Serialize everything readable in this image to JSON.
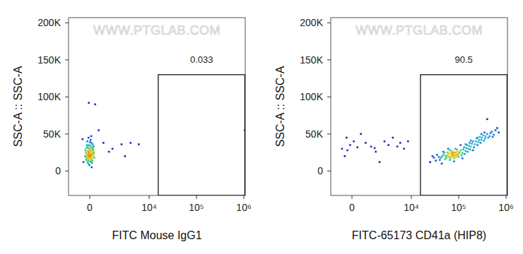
{
  "chart_data": [
    {
      "type": "scatter",
      "x_label": "FITC Mouse IgG1",
      "y_label": "SSC-A :: SSC-A",
      "watermark": "WWW.PTGLAB.COM",
      "log": "x",
      "xlim": [
        -1370,
        1070000
      ],
      "ylim": [
        -33000,
        207000
      ],
      "xticks": [
        0,
        {
          "value": 10000,
          "label": "10⁴"
        },
        {
          "value": 100000,
          "label": "10⁵"
        },
        {
          "value": 1000000,
          "label": "10⁶"
        }
      ],
      "yticks": [
        0,
        {
          "value": 50000,
          "label": "50K"
        },
        {
          "value": 100000,
          "label": "100K"
        },
        {
          "value": 150000,
          "label": "150K"
        },
        {
          "value": 200000,
          "label": "200K"
        }
      ],
      "gate": {
        "x": [
          15600,
          1050000
        ],
        "y": [
          -33000,
          130000
        ],
        "percent": 0.033
      },
      "x": [
        -120,
        40,
        100,
        -60,
        150,
        -200,
        10,
        70,
        -90,
        200,
        -30,
        120,
        -160,
        60,
        0,
        -250,
        180,
        -80,
        90,
        -40,
        30,
        -110,
        140,
        -180,
        50,
        -20,
        110,
        -140,
        220,
        -70,
        20,
        -100,
        160,
        80,
        -50,
        0,
        -220,
        130,
        -10,
        250,
        -130,
        60,
        -90,
        170,
        -30,
        100,
        -170,
        40,
        -60,
        190,
        -240,
        70,
        -120,
        10,
        150,
        -80,
        30,
        -150,
        90,
        -20,
        120,
        -200,
        50,
        -40,
        210,
        -110,
        0,
        80,
        -70,
        140,
        800,
        1500,
        2500,
        4000,
        6000,
        3000,
        1200,
        500,
        300,
        -50,
        -400,
        -350,
        1050000
      ],
      "y": [
        22000,
        18000,
        25000,
        30000,
        20000,
        15000,
        27000,
        12000,
        19000,
        23000,
        35000,
        32000,
        26000,
        21000,
        16000,
        20000,
        28000,
        10000,
        38000,
        24000,
        29000,
        33000,
        14000,
        31000,
        42000,
        8000,
        17000,
        21000,
        25000,
        45000,
        13000,
        27000,
        36000,
        23000,
        19000,
        31000,
        24000,
        11000,
        22000,
        18000,
        40000,
        26000,
        14000,
        30000,
        20000,
        5000,
        17000,
        34000,
        25000,
        21000,
        28000,
        19000,
        12000,
        39000,
        26000,
        22000,
        17000,
        35000,
        29000,
        26000,
        23000,
        19000,
        15000,
        28000,
        33000,
        23000,
        20000,
        47000,
        16000,
        20000,
        38000,
        30000,
        36000,
        38000,
        36000,
        20000,
        26000,
        55000,
        90000,
        92000,
        43000,
        12000,
        55000
      ]
    },
    {
      "type": "scatter",
      "x_label": "FITC-65173 CD41a (HIP8)",
      "y_label": "SSC-A :: SSC-A",
      "watermark": "WWW.PTGLAB.COM",
      "log": "x",
      "xlim": [
        -1370,
        1070000
      ],
      "ylim": [
        -33000,
        207000
      ],
      "xticks": [
        0,
        {
          "value": 10000,
          "label": "10⁴"
        },
        {
          "value": 100000,
          "label": "10⁵"
        },
        {
          "value": 1000000,
          "label": "10⁶"
        }
      ],
      "yticks": [
        0,
        {
          "value": 50000,
          "label": "50K"
        },
        {
          "value": 100000,
          "label": "100K"
        },
        {
          "value": 150000,
          "label": "150K"
        },
        {
          "value": 200000,
          "label": "200K"
        }
      ],
      "gate": {
        "x": [
          15600,
          1050000
        ],
        "y": [
          -33000,
          130000
        ],
        "percent": 90.5
      },
      "x": [
        25000,
        30000,
        35000,
        40000,
        45000,
        50000,
        55000,
        60000,
        65000,
        70000,
        75000,
        80000,
        85000,
        90000,
        95000,
        100000,
        110000,
        120000,
        130000,
        140000,
        150000,
        160000,
        170000,
        180000,
        200000,
        220000,
        240000,
        260000,
        280000,
        300000,
        330000,
        360000,
        400000,
        450000,
        500000,
        550000,
        600000,
        650000,
        700000,
        400000,
        42000,
        48000,
        52000,
        58000,
        62000,
        68000,
        72000,
        78000,
        82000,
        88000,
        92000,
        98000,
        105000,
        115000,
        125000,
        135000,
        145000,
        155000,
        165000,
        175000,
        190000,
        210000,
        230000,
        250000,
        270000,
        290000,
        310000,
        340000,
        370000,
        420000,
        470000,
        520000,
        57000,
        63000,
        67000,
        73000,
        77000,
        83000,
        87000,
        93000,
        47000,
        53000,
        38000,
        33000,
        28000,
        44000,
        60000,
        110000,
        200000,
        300000,
        120000,
        80000,
        65000,
        100000,
        90000,
        75000,
        140000,
        250000,
        180000,
        350000,
        70000,
        85000,
        -560,
        -400,
        -250,
        -100,
        100,
        300,
        500,
        800,
        1200,
        1600,
        2000,
        2600,
        3200,
        4000,
        5000,
        5800,
        7000,
        8500,
        -300,
        1500
      ],
      "y": [
        12000,
        18000,
        22000,
        15000,
        20000,
        25000,
        18000,
        22000,
        28000,
        20000,
        24000,
        17000,
        30000,
        22000,
        26000,
        19000,
        28000,
        24000,
        32000,
        27000,
        35000,
        30000,
        38000,
        33000,
        40000,
        36000,
        44000,
        39000,
        46000,
        42000,
        48000,
        44000,
        50000,
        47000,
        53000,
        49000,
        55000,
        58000,
        52000,
        70000,
        18000,
        22000,
        16000,
        25000,
        19000,
        23000,
        27000,
        21000,
        25000,
        19000,
        29000,
        23000,
        25000,
        21000,
        29000,
        23000,
        31000,
        26000,
        34000,
        29000,
        37000,
        32000,
        40000,
        35000,
        42000,
        38000,
        45000,
        41000,
        47000,
        45000,
        51000,
        46000,
        21000,
        24000,
        17000,
        22000,
        26000,
        20000,
        24000,
        21000,
        26000,
        20000,
        19000,
        14000,
        20000,
        10000,
        30000,
        35000,
        28000,
        50000,
        17000,
        13000,
        15000,
        22000,
        26000,
        19000,
        36000,
        45000,
        41000,
        52000,
        25000,
        21000,
        30000,
        20000,
        28000,
        35000,
        40000,
        32000,
        50000,
        38000,
        33000,
        26000,
        12000,
        40000,
        35000,
        45000,
        33000,
        38000,
        30000,
        40000,
        45000,
        31000
      ]
    }
  ]
}
